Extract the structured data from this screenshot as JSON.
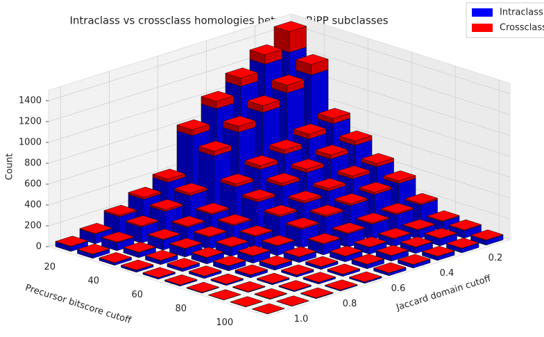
{
  "chart_data": {
    "type": "bar3d",
    "title": "Intraclass vs crossclass homologies between RiPP subclasses",
    "xlabel": "Precursor bitscore cutoff",
    "ylabel": "Jaccard domain cutoff",
    "zlabel": "Count",
    "x": [
      10,
      20,
      30,
      40,
      50,
      60,
      70,
      80,
      90,
      100
    ],
    "y": [
      0.1,
      0.2,
      0.3,
      0.4,
      0.5,
      0.6,
      0.7,
      0.8,
      0.9,
      1.0
    ],
    "series": [
      {
        "name": "Intraclass",
        "color": "#0000ff",
        "values": [
          [
            1250,
            1210,
            1070,
            930,
            745,
            370,
            280,
            186,
            93,
            46
          ],
          [
            1100,
            1001,
            887,
            770,
            616,
            308,
            231,
            154,
            77,
            38
          ],
          [
            700,
            626,
            553,
            481,
            385,
            193,
            144,
            97,
            48,
            24
          ],
          [
            558,
            500,
            443,
            385,
            308,
            154,
            115,
            77,
            38,
            19
          ],
          [
            418,
            376,
            332,
            288,
            231,
            115,
            86,
            58,
            29,
            15
          ],
          [
            325,
            292,
            259,
            224,
            179,
            90,
            67,
            45,
            22,
            11
          ],
          [
            186,
            166,
            148,
            128,
            102,
            51,
            38,
            26,
            13,
            6
          ],
          [
            93,
            84,
            73,
            64,
            51,
            26,
            20,
            13,
            6,
            2
          ],
          [
            74,
            67,
            59,
            51,
            41,
            20,
            16,
            10,
            5,
            2
          ],
          [
            46,
            42,
            37,
            33,
            26,
            13,
            9,
            6,
            2,
            1
          ]
        ]
      },
      {
        "name": "Crossclass",
        "color": "#ff0000",
        "values": [
          [
            200,
            90,
            80,
            70,
            55,
            30,
            20,
            14,
            7,
            4
          ],
          [
            100,
            75,
            65,
            58,
            46,
            23,
            17,
            12,
            6,
            3
          ],
          [
            50,
            47,
            42,
            36,
            29,
            14,
            11,
            7,
            4,
            2
          ],
          [
            42,
            38,
            33,
            29,
            23,
            12,
            9,
            6,
            3,
            2
          ],
          [
            32,
            28,
            25,
            22,
            17,
            9,
            7,
            4,
            2,
            1
          ],
          [
            25,
            22,
            19,
            17,
            14,
            7,
            5,
            3,
            2,
            1
          ],
          [
            14,
            13,
            11,
            10,
            8,
            4,
            3,
            2,
            1,
            1
          ],
          [
            7,
            6,
            6,
            5,
            4,
            2,
            1,
            1,
            1,
            1
          ],
          [
            6,
            5,
            4,
            4,
            3,
            2,
            1,
            1,
            1,
            1
          ],
          [
            4,
            3,
            3,
            2,
            2,
            1,
            1,
            1,
            1,
            1
          ]
        ]
      }
    ],
    "xlim": [
      5,
      105
    ],
    "ylim": [
      0.05,
      1.05
    ],
    "zlim": [
      0,
      1500
    ],
    "xticks": [
      20,
      40,
      60,
      80,
      100
    ],
    "yticks": [
      0.2,
      0.4,
      0.6,
      0.8,
      {
        "value": 1.0,
        "label": "1.0"
      }
    ],
    "zticks": [
      0,
      200,
      400,
      600,
      800,
      1000,
      1200,
      1400
    ],
    "grid": true,
    "legend": "upper right"
  }
}
